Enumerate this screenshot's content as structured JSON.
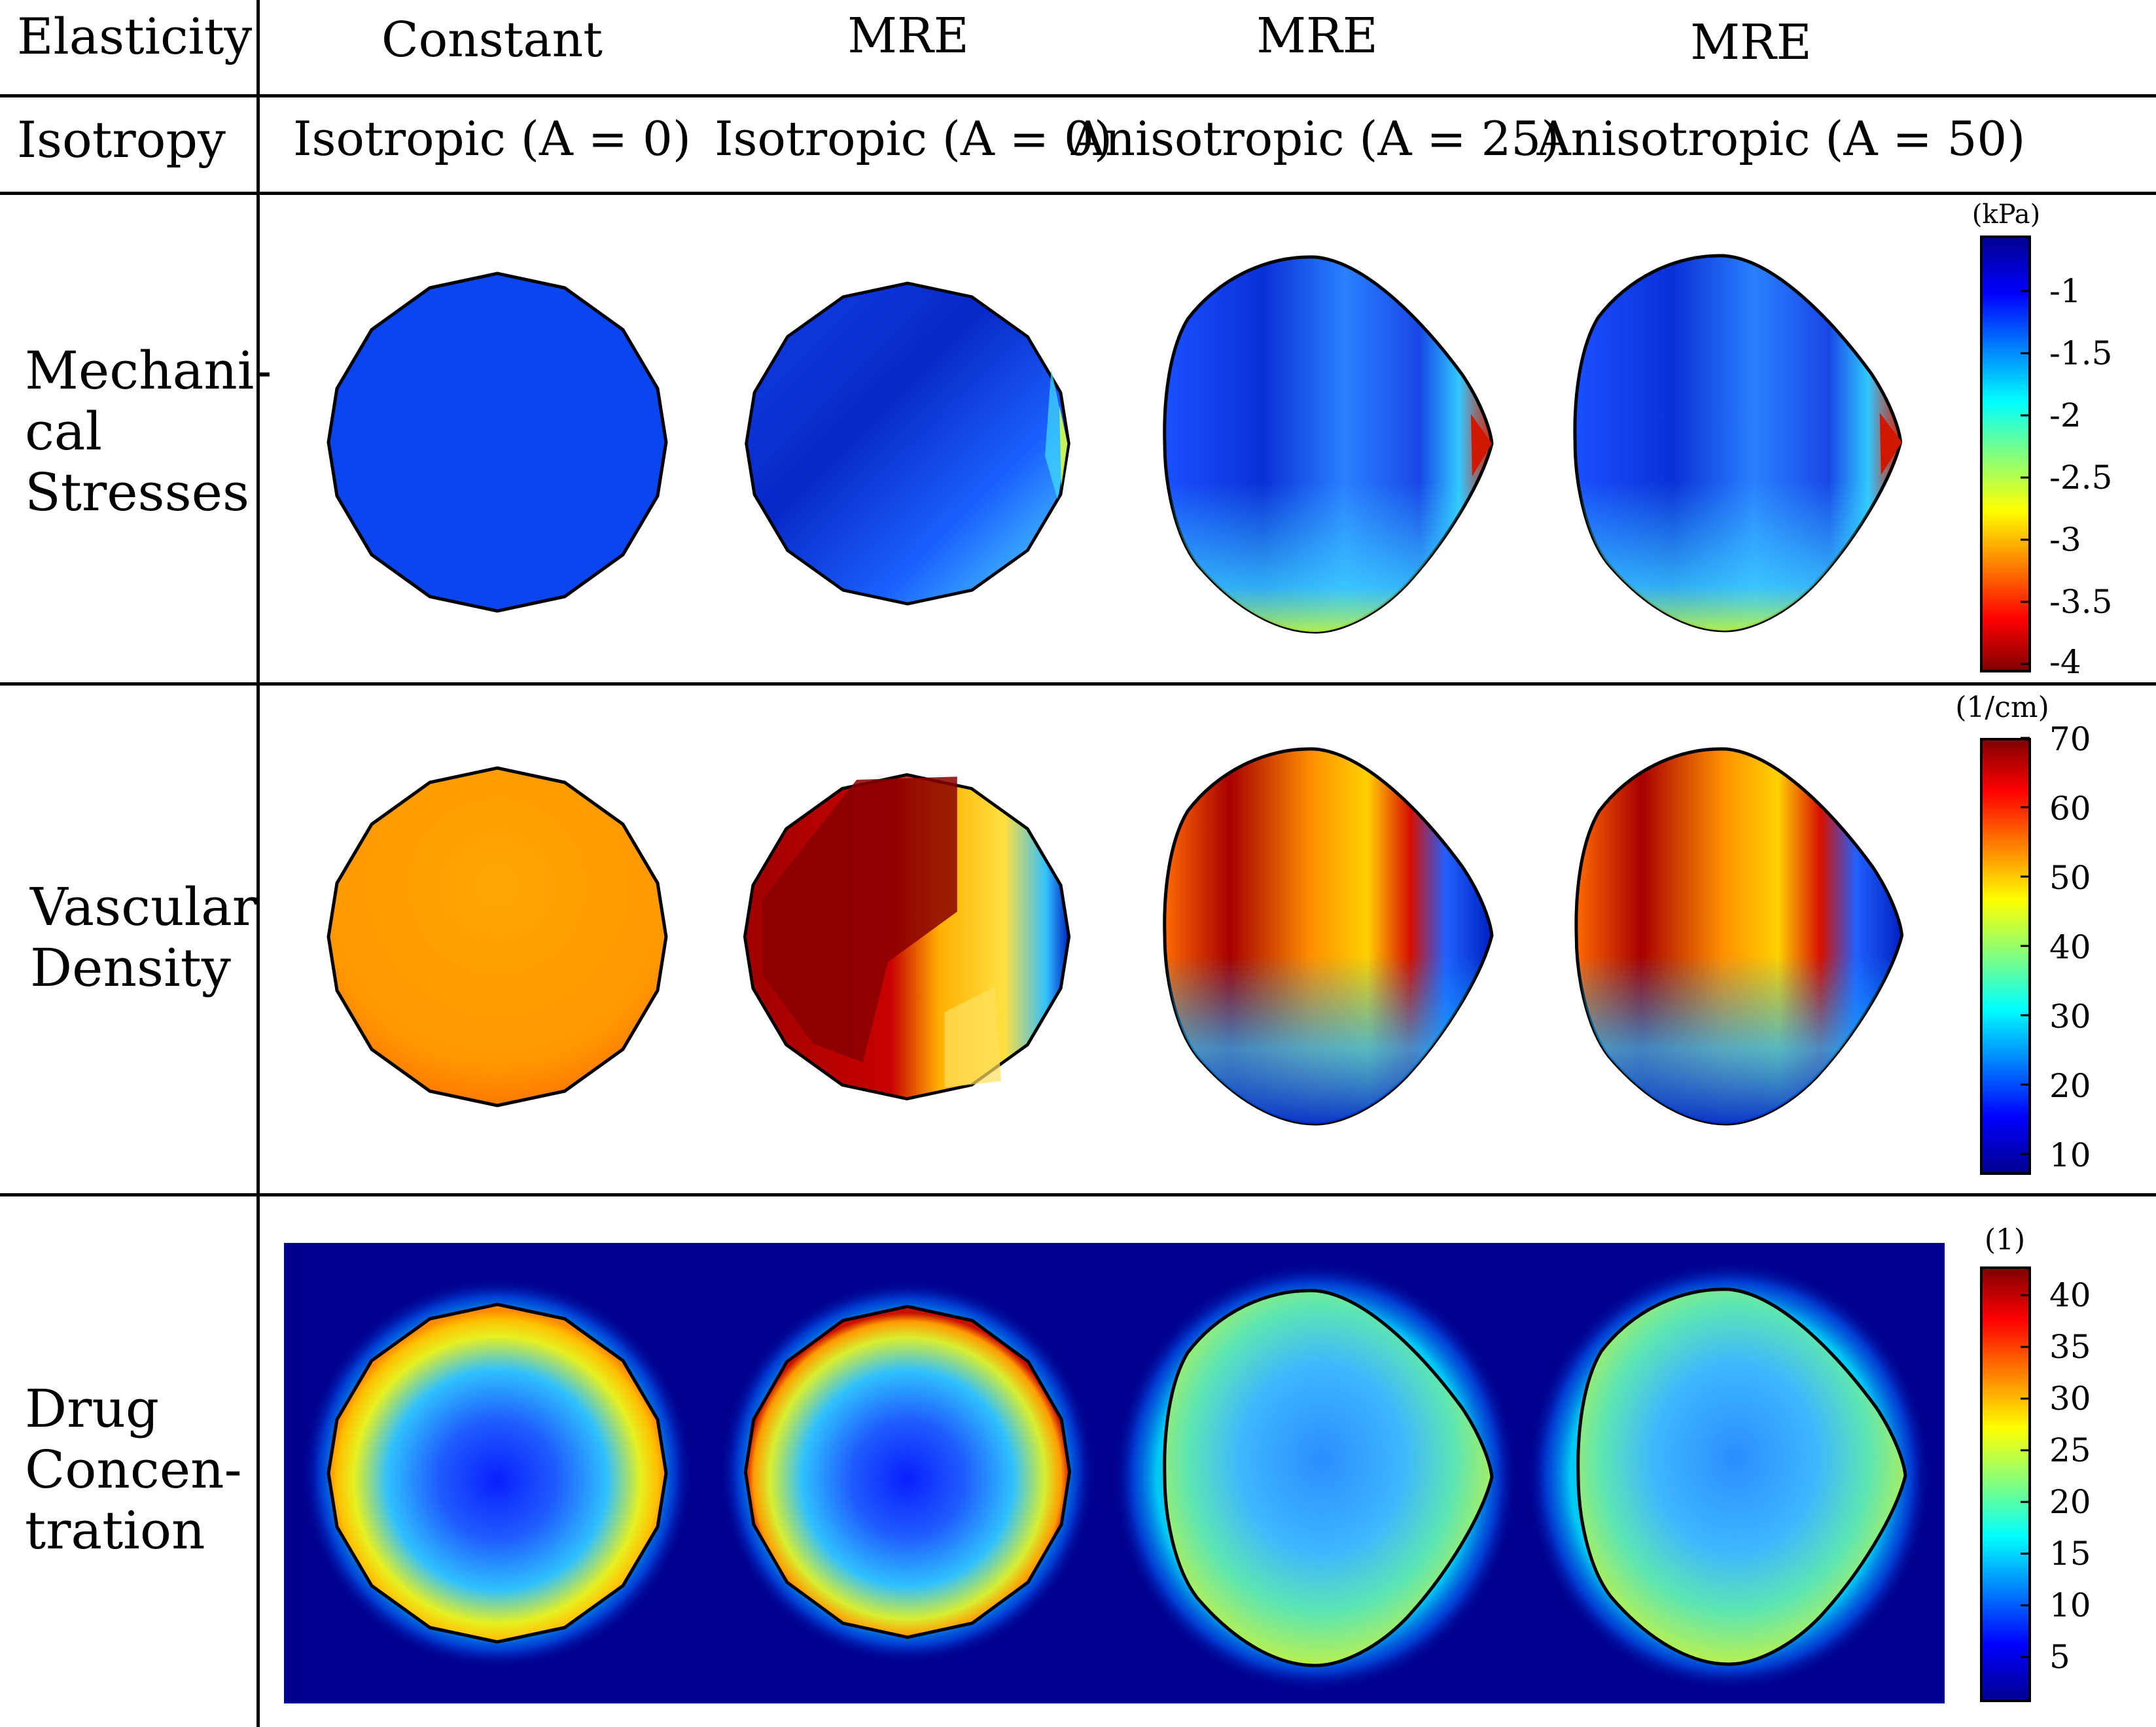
{
  "header": {
    "elasticity_label": "Elasticity",
    "isotropy_label": "Isotropy",
    "columns": [
      {
        "elasticity": "Constant",
        "isotropy": "Isotropic (A = 0)"
      },
      {
        "elasticity": "MRE",
        "isotropy": "Isotropic (A = 0)"
      },
      {
        "elasticity": "MRE",
        "isotropy": "Anisotropic (A = 25)"
      },
      {
        "elasticity": "MRE",
        "isotropy": "Anisotropic (A = 50)"
      }
    ]
  },
  "rows": [
    {
      "label_lines": [
        "Mechani-",
        "cal",
        "Stresses"
      ],
      "colorbar": {
        "unit": "(kPa)",
        "ticks": [
          "-1",
          "-1.5",
          "-2",
          "-2.5",
          "-3",
          "-3.5",
          "-4"
        ],
        "range": [
          -0.6,
          -4
        ]
      }
    },
    {
      "label_lines": [
        "Vascular",
        "Density"
      ],
      "colorbar": {
        "unit": "(1/cm)",
        "ticks": [
          "70",
          "60",
          "50",
          "40",
          "30",
          "20",
          "10"
        ],
        "range": [
          72,
          7
        ]
      }
    },
    {
      "label_lines": [
        "Drug",
        "Concen-",
        "tration"
      ],
      "colorbar": {
        "unit": "(1)",
        "ticks": [
          "40",
          "35",
          "30",
          "25",
          "20",
          "15",
          "10",
          "5"
        ],
        "range": [
          43,
          0
        ]
      }
    }
  ],
  "colors": {
    "jet_dark_blue": "#00008f",
    "jet_blue": "#0000ff",
    "jet_cyan": "#00ffff",
    "jet_yellow": "#ffff00",
    "jet_red": "#ff0000",
    "jet_dark_red": "#800000",
    "stress_uniform": "#0a46f0",
    "density_uniform": "#ff9a00"
  },
  "icons": [
    "tumor-cross-section"
  ]
}
